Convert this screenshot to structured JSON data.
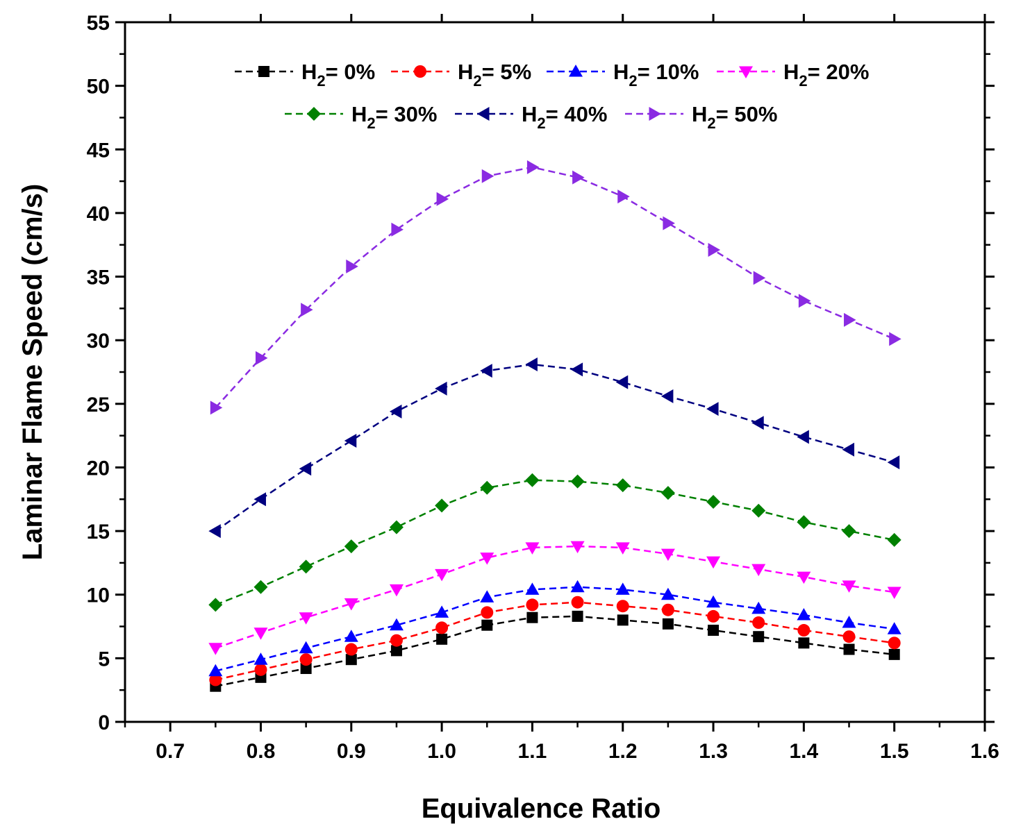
{
  "chart_data": {
    "type": "line",
    "title": "",
    "xlabel": "Equivalence Ratio",
    "ylabel": "Laminar Flame Speed (cm/s)",
    "xlim": [
      0.65,
      1.6
    ],
    "ylim": [
      0,
      55
    ],
    "x_ticks": [
      "0.7",
      "0.8",
      "0.9",
      "1.0",
      "1.1",
      "1.2",
      "1.3",
      "1.4",
      "1.5",
      "1.6"
    ],
    "x_tick_values": [
      0.7,
      0.8,
      0.9,
      1.0,
      1.1,
      1.2,
      1.3,
      1.4,
      1.5,
      1.6
    ],
    "y_ticks": [
      "0",
      "5",
      "10",
      "15",
      "20",
      "25",
      "30",
      "35",
      "40",
      "45",
      "50",
      "55"
    ],
    "y_tick_values": [
      0,
      5,
      10,
      15,
      20,
      25,
      30,
      35,
      40,
      45,
      50,
      55
    ],
    "grid": false,
    "legend_position": "top",
    "x": [
      0.75,
      0.8,
      0.85,
      0.9,
      0.95,
      1.0,
      1.05,
      1.1,
      1.15,
      1.2,
      1.25,
      1.3,
      1.35,
      1.4,
      1.45,
      1.5
    ],
    "series": [
      {
        "name": "H2= 0%",
        "label_main": "H",
        "label_sub": "2",
        "label_rest": "= 0%",
        "color": "#000000",
        "marker": "square",
        "values": [
          2.8,
          3.5,
          4.2,
          4.9,
          5.6,
          6.5,
          7.6,
          8.2,
          8.3,
          8.0,
          7.7,
          7.2,
          6.7,
          6.2,
          5.7,
          5.3
        ]
      },
      {
        "name": "H2= 5%",
        "label_main": "H",
        "label_sub": "2",
        "label_rest": "= 5%",
        "color": "#ff0000",
        "marker": "circle",
        "values": [
          3.3,
          4.1,
          4.9,
          5.7,
          6.4,
          7.4,
          8.6,
          9.2,
          9.4,
          9.1,
          8.8,
          8.3,
          7.8,
          7.2,
          6.7,
          6.2
        ]
      },
      {
        "name": "H2= 10%",
        "label_main": "H",
        "label_sub": "2",
        "label_rest": "= 10%",
        "color": "#0000ff",
        "marker": "triangle-up",
        "values": [
          4.0,
          4.9,
          5.8,
          6.7,
          7.6,
          8.6,
          9.8,
          10.4,
          10.6,
          10.4,
          10.0,
          9.4,
          8.9,
          8.4,
          7.8,
          7.3
        ]
      },
      {
        "name": "H2= 20%",
        "label_main": "H",
        "label_sub": "2",
        "label_rest": "= 20%",
        "color": "#ff00ff",
        "marker": "triangle-down",
        "values": [
          5.8,
          7.0,
          8.2,
          9.3,
          10.4,
          11.6,
          12.9,
          13.7,
          13.8,
          13.7,
          13.2,
          12.6,
          12.0,
          11.4,
          10.7,
          10.2
        ]
      },
      {
        "name": "H2= 30%",
        "label_main": "H",
        "label_sub": "2",
        "label_rest": "= 30%",
        "color": "#008000",
        "marker": "diamond",
        "values": [
          9.2,
          10.6,
          12.2,
          13.8,
          15.3,
          17.0,
          18.4,
          19.0,
          18.9,
          18.6,
          18.0,
          17.3,
          16.6,
          15.7,
          15.0,
          14.3
        ]
      },
      {
        "name": "H2= 40%",
        "label_main": "H",
        "label_sub": "2",
        "label_rest": "= 40%",
        "color": "#000080",
        "marker": "triangle-left",
        "values": [
          15.0,
          17.5,
          19.9,
          22.1,
          24.4,
          26.2,
          27.6,
          28.1,
          27.7,
          26.7,
          25.6,
          24.6,
          23.5,
          22.4,
          21.4,
          20.4
        ]
      },
      {
        "name": "H2= 50%",
        "label_main": "H",
        "label_sub": "2",
        "label_rest": "= 50%",
        "color": "#8a2be2",
        "marker": "triangle-right",
        "values": [
          24.7,
          28.6,
          32.4,
          35.8,
          38.7,
          41.1,
          42.9,
          43.6,
          42.8,
          41.3,
          39.2,
          37.1,
          34.9,
          33.1,
          31.6,
          30.1
        ]
      }
    ]
  }
}
